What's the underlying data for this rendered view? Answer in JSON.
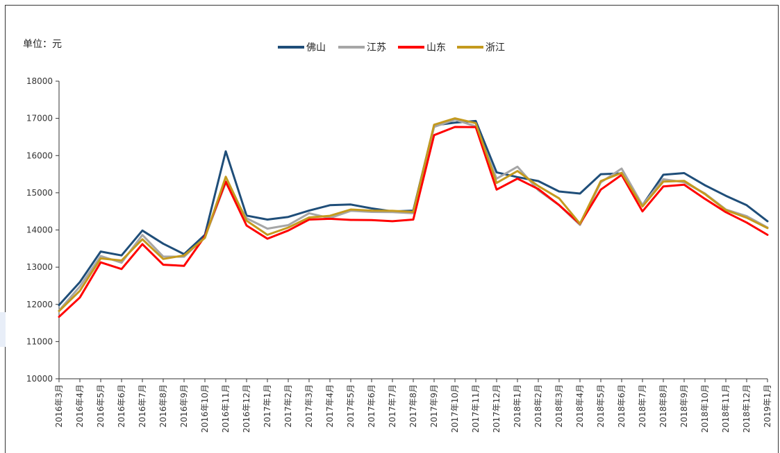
{
  "chart_data": {
    "type": "line",
    "unit_label": "单位：元",
    "ylim": [
      10000,
      18000
    ],
    "y_ticks": [
      10000,
      11000,
      12000,
      13000,
      14000,
      15000,
      16000,
      17000,
      18000
    ],
    "x_labels": [
      "2016年3月",
      "2016年4月",
      "2016年5月",
      "2016年6月",
      "2016年7月",
      "2016年8月",
      "2016年9月",
      "2016年10月",
      "2016年11月",
      "2016年12月",
      "2017年1月",
      "2017年2月",
      "2017年3月",
      "2017年4月",
      "2017年5月",
      "2017年6月",
      "2017年7月",
      "2017年8月",
      "2017年9月",
      "2017年10月",
      "2017年11月",
      "2017年12月",
      "2018年1月",
      "2018年2月",
      "2018年3月",
      "2018年4月",
      "2018年5月",
      "2018年6月",
      "2018年7月",
      "2018年8月",
      "2018年9月",
      "2018年10月",
      "2018年11月",
      "2018年12月",
      "2019年1月"
    ],
    "legend_position": "top-center",
    "grid": false,
    "series": [
      {
        "name": "佛山",
        "color": "#1f4e79",
        "values": [
          11950,
          12600,
          13450,
          13300,
          14000,
          13600,
          13350,
          13900,
          16100,
          14400,
          14250,
          14350,
          14550,
          14650,
          14700,
          14550,
          14500,
          14550,
          16800,
          16900,
          16900,
          15550,
          15450,
          15300,
          15050,
          14950,
          15500,
          15550,
          14650,
          15500,
          15500,
          15200,
          14950,
          14650,
          14250
        ]
      },
      {
        "name": "江苏",
        "color": "#a6a6a6",
        "values": [
          11850,
          12450,
          13300,
          13150,
          13850,
          13300,
          13250,
          13800,
          15300,
          14300,
          14050,
          14100,
          14450,
          14350,
          14500,
          14500,
          14450,
          14450,
          16800,
          16950,
          16800,
          15350,
          15700,
          15100,
          14650,
          14150,
          15250,
          15650,
          14700,
          15350,
          15300,
          14950,
          14550,
          14400,
          14050
        ]
      },
      {
        "name": "山东",
        "color": "#ff0000",
        "values": [
          11650,
          12200,
          13100,
          12950,
          13650,
          13050,
          13050,
          13800,
          15300,
          14150,
          13750,
          14000,
          14250,
          14300,
          14300,
          14250,
          14250,
          14250,
          16550,
          16800,
          16750,
          15100,
          15350,
          15100,
          14700,
          14150,
          15100,
          15450,
          14500,
          15200,
          15200,
          14850,
          14450,
          14200,
          13900
        ]
      },
      {
        "name": "浙江",
        "color": "#c49a1e",
        "values": [
          11850,
          12350,
          13250,
          13150,
          13750,
          13250,
          13300,
          13800,
          15400,
          14250,
          13900,
          14050,
          14350,
          14350,
          14550,
          14550,
          14500,
          14500,
          16800,
          17000,
          16900,
          15250,
          15600,
          15150,
          14850,
          14200,
          15300,
          15550,
          14600,
          15300,
          15350,
          14950,
          14550,
          14300,
          14050
        ]
      }
    ]
  }
}
